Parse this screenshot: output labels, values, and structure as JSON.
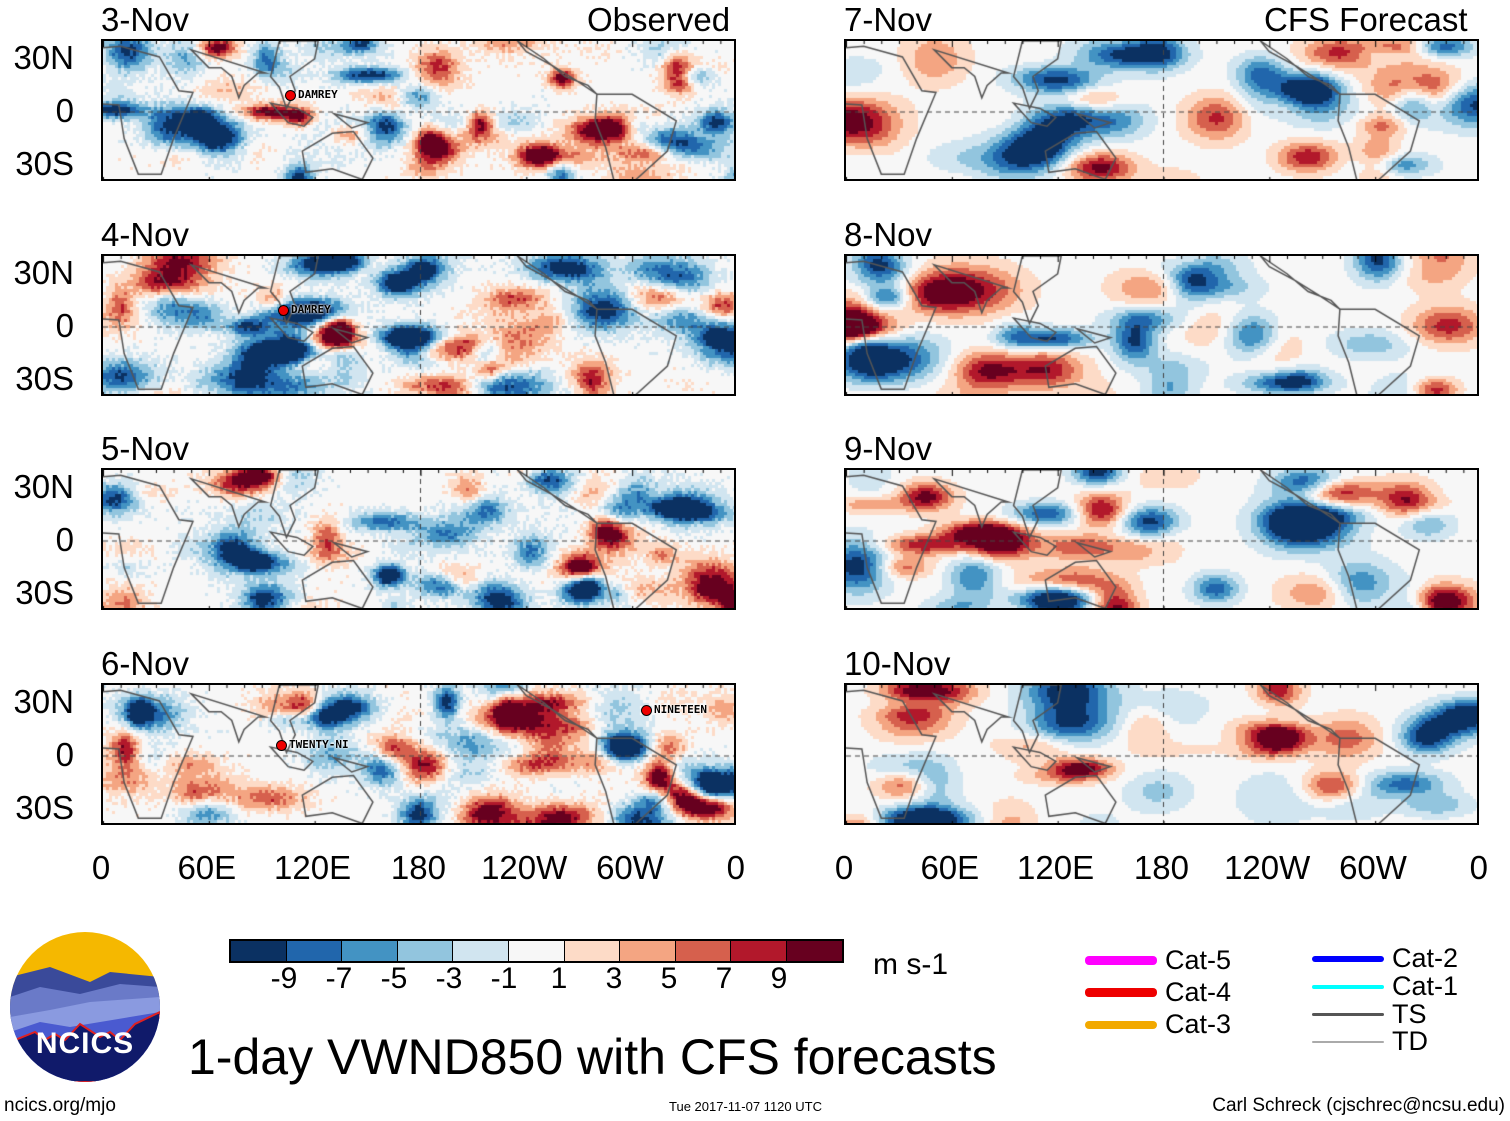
{
  "header": {
    "left_label": "Observed",
    "right_label": "CFS Forecast"
  },
  "panels": [
    {
      "date": "3-Nov",
      "seed": 11,
      "storms": [
        {
          "name": "DAMREY"
        }
      ]
    },
    {
      "date": "4-Nov",
      "seed": 23,
      "storms": [
        {
          "name": "DAMREY"
        }
      ]
    },
    {
      "date": "5-Nov",
      "seed": 37,
      "storms": []
    },
    {
      "date": "6-Nov",
      "seed": 41,
      "storms": [
        {
          "name": "TWENTY-NI"
        },
        {
          "name": "NINETEEN"
        }
      ]
    },
    {
      "date": "7-Nov",
      "seed": 53,
      "storms": []
    },
    {
      "date": "8-Nov",
      "seed": 67,
      "storms": []
    },
    {
      "date": "9-Nov",
      "seed": 79,
      "storms": []
    },
    {
      "date": "10-Nov",
      "seed": 83,
      "storms": []
    }
  ],
  "lat_labels": [
    "30N",
    "0",
    "30S"
  ],
  "lon_labels": [
    "0",
    "60E",
    "120E",
    "180",
    "120W",
    "60W",
    "0"
  ],
  "colorbar": {
    "colors": [
      "#0b3162",
      "#2166ac",
      "#4393c3",
      "#92c5de",
      "#d1e5f0",
      "#f7f7f7",
      "#fddbc7",
      "#f4a582",
      "#d6604d",
      "#b2182b",
      "#67001f"
    ],
    "ticks": [
      "-9",
      "-7",
      "-5",
      "-3",
      "-1",
      "1",
      "3",
      "5",
      "7",
      "9"
    ],
    "units": "m s-1"
  },
  "title": "1-day VWND850 with CFS forecasts",
  "logo": {
    "text": "NCICS"
  },
  "footer": {
    "url": "ncics.org/mjo",
    "timestamp": "Tue 2017-11-07 1120 UTC",
    "author": "Carl Schreck (cjschrec@ncsu.edu)"
  },
  "legend": [
    {
      "label": "Cat-5",
      "color": "#ff00ff"
    },
    {
      "label": "Cat-4",
      "color": "#ee0000"
    },
    {
      "label": "Cat-3",
      "color": "#f2a900"
    },
    {
      "label": "Cat-2",
      "color": "#0000ff"
    },
    {
      "label": "Cat-1",
      "color": "#00ffff"
    },
    {
      "label": "TS",
      "color": "#555555"
    },
    {
      "label": "TD",
      "color": "#aaaaaa"
    }
  ]
}
